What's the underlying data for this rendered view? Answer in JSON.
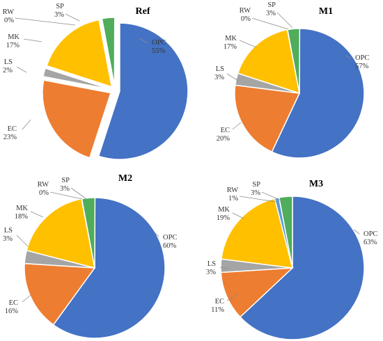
{
  "chart_data": [
    {
      "type": "pie",
      "title": "Ref",
      "slices": [
        {
          "label": "OPC",
          "value": 55,
          "pct": "55%"
        },
        {
          "label": "EC",
          "value": 23,
          "pct": "23%"
        },
        {
          "label": "LS",
          "value": 2,
          "pct": "2%"
        },
        {
          "label": "MK",
          "value": 17,
          "pct": "17%"
        },
        {
          "label": "RW",
          "value": 0,
          "pct": "0%"
        },
        {
          "label": "SP",
          "value": 3,
          "pct": "3%"
        }
      ],
      "exploded": true
    },
    {
      "type": "pie",
      "title": "M1",
      "slices": [
        {
          "label": "OPC",
          "value": 57,
          "pct": "57%"
        },
        {
          "label": "EC",
          "value": 20,
          "pct": "20%"
        },
        {
          "label": "LS",
          "value": 3,
          "pct": "3%"
        },
        {
          "label": "MK",
          "value": 17,
          "pct": "17%"
        },
        {
          "label": "RW",
          "value": 0,
          "pct": "0%"
        },
        {
          "label": "SP",
          "value": 3,
          "pct": "3%"
        }
      ],
      "exploded": false
    },
    {
      "type": "pie",
      "title": "M2",
      "slices": [
        {
          "label": "OPC",
          "value": 60,
          "pct": "60%"
        },
        {
          "label": "EC",
          "value": 16,
          "pct": "16%"
        },
        {
          "label": "LS",
          "value": 3,
          "pct": "3%"
        },
        {
          "label": "MK",
          "value": 18,
          "pct": "18%"
        },
        {
          "label": "RW",
          "value": 0,
          "pct": "0%"
        },
        {
          "label": "SP",
          "value": 3,
          "pct": "3%"
        }
      ],
      "exploded": false
    },
    {
      "type": "pie",
      "title": "M3",
      "slices": [
        {
          "label": "OPC",
          "value": 63,
          "pct": "63%"
        },
        {
          "label": "EC",
          "value": 11,
          "pct": "11%"
        },
        {
          "label": "LS",
          "value": 3,
          "pct": "3%"
        },
        {
          "label": "MK",
          "value": 19,
          "pct": "19%"
        },
        {
          "label": "RW",
          "value": 1,
          "pct": "1%"
        },
        {
          "label": "SP",
          "value": 3,
          "pct": "3%"
        }
      ],
      "exploded": false
    }
  ],
  "colors": {
    "OPC": "#4472c4",
    "EC": "#ed7d31",
    "LS": "#a5a5a5",
    "MK": "#ffc000",
    "RW": "#5b9bd5",
    "SP": "#4fad5b"
  }
}
